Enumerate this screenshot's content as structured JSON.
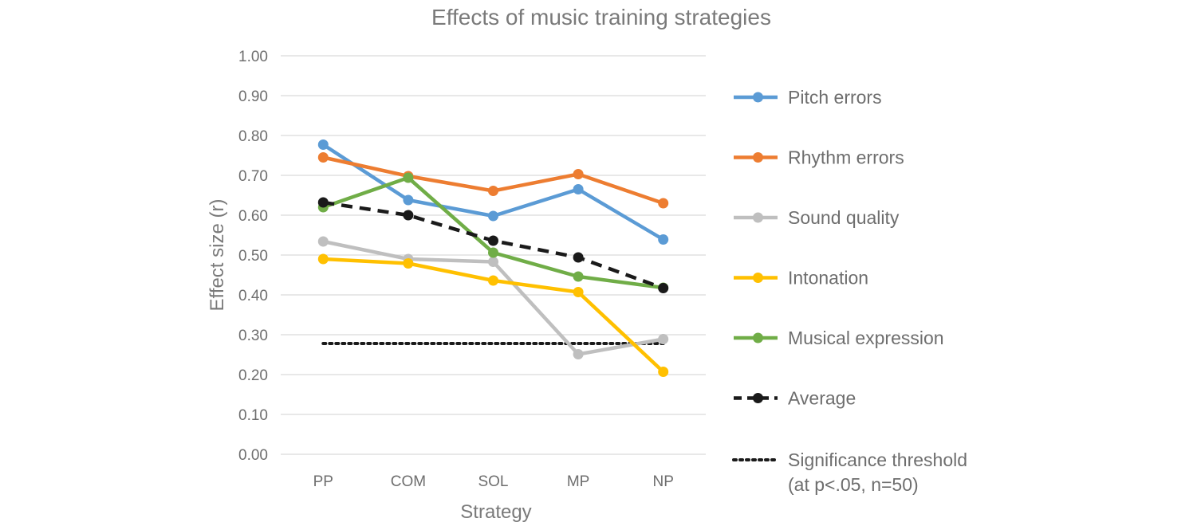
{
  "chart_data": {
    "type": "line",
    "title": "Effects of music training strategies",
    "xlabel": "Strategy",
    "ylabel": "Effect size (r)",
    "ylim": [
      0,
      1
    ],
    "y_ticks": [
      "0.00",
      "0.10",
      "0.20",
      "0.30",
      "0.40",
      "0.50",
      "0.60",
      "0.70",
      "0.80",
      "0.90",
      "1.00"
    ],
    "categories": [
      "PP",
      "COM",
      "SOL",
      "MP",
      "NP"
    ],
    "grid": true,
    "legend_position": "right",
    "series": [
      {
        "name": "Pitch errors",
        "color": "#5b9bd5",
        "style": "solid",
        "values": [
          0.777,
          0.638,
          0.598,
          0.665,
          0.539
        ]
      },
      {
        "name": "Rhythm errors",
        "color": "#ed7d31",
        "style": "solid",
        "values": [
          0.745,
          0.698,
          0.661,
          0.703,
          0.63
        ]
      },
      {
        "name": "Sound quality",
        "color": "#bfbfbf",
        "style": "solid",
        "values": [
          0.534,
          0.49,
          0.483,
          0.251,
          0.289
        ]
      },
      {
        "name": "Intonation",
        "color": "#ffc000",
        "style": "solid",
        "values": [
          0.49,
          0.479,
          0.436,
          0.407,
          0.207
        ]
      },
      {
        "name": "Musical expression",
        "color": "#70ad47",
        "style": "solid",
        "values": [
          0.62,
          0.694,
          0.506,
          0.446,
          0.418
        ]
      },
      {
        "name": "Average",
        "color": "#1a1a1a",
        "style": "dashed",
        "values": [
          0.632,
          0.6,
          0.536,
          0.494,
          0.417
        ]
      }
    ],
    "threshold": {
      "name_line1": "Significance threshold",
      "name_line2": "(at p<.05, n=50)",
      "color": "#1a1a1a",
      "style": "dotted",
      "value": 0.278
    }
  }
}
